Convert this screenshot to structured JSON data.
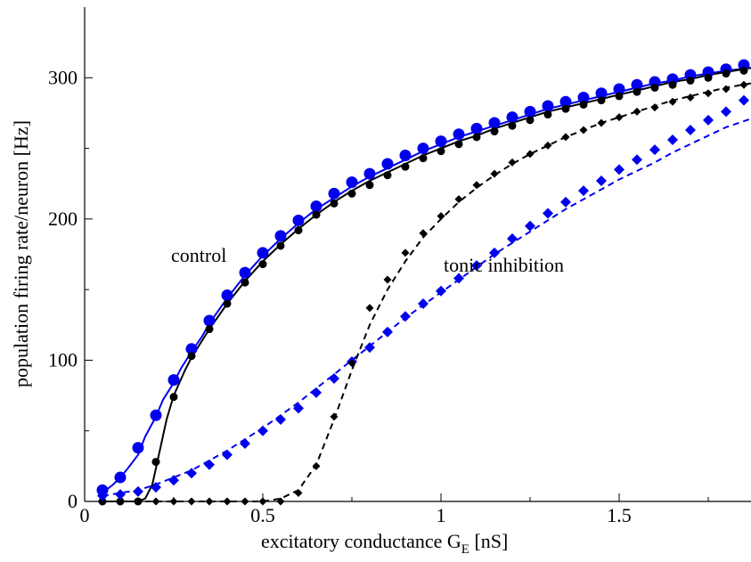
{
  "chart_data": {
    "type": "scatter",
    "xlabel": "excitatory conductance G",
    "xlabel_sub": "E",
    "xlabel_unit": " [nS]",
    "ylabel": "population firing rate/neuron [Hz]",
    "xlim": [
      0,
      1.87
    ],
    "ylim": [
      0,
      350
    ],
    "x_ticks": [
      0,
      0.5,
      1,
      1.5
    ],
    "x_tick_labels": [
      "0",
      "0.5",
      "1",
      "1.5"
    ],
    "y_ticks": [
      0,
      100,
      200,
      300
    ],
    "y_tick_labels": [
      "0",
      "100",
      "200",
      "300"
    ],
    "grid": false,
    "annotations": [
      {
        "text": "control",
        "x": 0.33,
        "y": 172
      },
      {
        "text": "tonic inhibition",
        "x": 1.02,
        "y": 160
      }
    ],
    "colors": {
      "black": "#000000",
      "blue": "#0000ee"
    },
    "series": [
      {
        "marker": "circle",
        "color": "#0000ee",
        "large": true,
        "points": [
          [
            0.05,
            8
          ],
          [
            0.1,
            17
          ],
          [
            0.15,
            38
          ],
          [
            0.2,
            61
          ],
          [
            0.25,
            86
          ],
          [
            0.3,
            108
          ],
          [
            0.35,
            128
          ],
          [
            0.4,
            146
          ],
          [
            0.45,
            162
          ],
          [
            0.5,
            176
          ],
          [
            0.55,
            188
          ],
          [
            0.6,
            199
          ],
          [
            0.65,
            209
          ],
          [
            0.7,
            218
          ],
          [
            0.75,
            226
          ],
          [
            0.8,
            232
          ],
          [
            0.85,
            239
          ],
          [
            0.9,
            245
          ],
          [
            0.95,
            250
          ],
          [
            1.0,
            255
          ],
          [
            1.05,
            260
          ],
          [
            1.1,
            264
          ],
          [
            1.15,
            268
          ],
          [
            1.2,
            272
          ],
          [
            1.25,
            276
          ],
          [
            1.3,
            280
          ],
          [
            1.35,
            283
          ],
          [
            1.4,
            286
          ],
          [
            1.45,
            289
          ],
          [
            1.5,
            292
          ],
          [
            1.55,
            295
          ],
          [
            1.6,
            297
          ],
          [
            1.65,
            299
          ],
          [
            1.7,
            302
          ],
          [
            1.75,
            304
          ],
          [
            1.8,
            306
          ],
          [
            1.85,
            309
          ]
        ]
      },
      {
        "marker": "circle",
        "color": "#000000",
        "large": false,
        "points": [
          [
            0.05,
            0
          ],
          [
            0.1,
            0
          ],
          [
            0.15,
            0
          ],
          [
            0.2,
            28
          ],
          [
            0.25,
            74
          ],
          [
            0.3,
            103
          ],
          [
            0.35,
            122
          ],
          [
            0.4,
            140
          ],
          [
            0.45,
            155
          ],
          [
            0.5,
            168
          ],
          [
            0.55,
            181
          ],
          [
            0.6,
            192
          ],
          [
            0.65,
            203
          ],
          [
            0.7,
            211
          ],
          [
            0.75,
            218
          ],
          [
            0.8,
            224
          ],
          [
            0.85,
            231
          ],
          [
            0.9,
            237
          ],
          [
            0.95,
            243
          ],
          [
            1.0,
            248
          ],
          [
            1.05,
            253
          ],
          [
            1.1,
            258
          ],
          [
            1.15,
            262
          ],
          [
            1.2,
            266
          ],
          [
            1.25,
            270
          ],
          [
            1.3,
            274
          ],
          [
            1.35,
            278
          ],
          [
            1.4,
            281
          ],
          [
            1.45,
            284
          ],
          [
            1.5,
            287
          ],
          [
            1.55,
            290
          ],
          [
            1.6,
            293
          ],
          [
            1.65,
            295
          ],
          [
            1.7,
            298
          ],
          [
            1.75,
            300
          ],
          [
            1.8,
            303
          ],
          [
            1.85,
            305
          ]
        ]
      },
      {
        "marker": "diamond",
        "color": "#0000ee",
        "large": true,
        "points": [
          [
            0.05,
            4
          ],
          [
            0.1,
            5
          ],
          [
            0.15,
            7
          ],
          [
            0.2,
            10
          ],
          [
            0.25,
            15
          ],
          [
            0.3,
            20
          ],
          [
            0.35,
            26
          ],
          [
            0.4,
            33
          ],
          [
            0.45,
            41
          ],
          [
            0.5,
            50
          ],
          [
            0.55,
            58
          ],
          [
            0.6,
            66
          ],
          [
            0.65,
            77
          ],
          [
            0.7,
            87
          ],
          [
            0.75,
            99
          ],
          [
            0.8,
            109
          ],
          [
            0.85,
            120
          ],
          [
            0.9,
            131
          ],
          [
            0.95,
            140
          ],
          [
            1.0,
            149
          ],
          [
            1.05,
            158
          ],
          [
            1.1,
            167
          ],
          [
            1.15,
            176
          ],
          [
            1.2,
            186
          ],
          [
            1.25,
            195
          ],
          [
            1.3,
            204
          ],
          [
            1.35,
            212
          ],
          [
            1.4,
            220
          ],
          [
            1.45,
            227
          ],
          [
            1.5,
            235
          ],
          [
            1.55,
            242
          ],
          [
            1.6,
            249
          ],
          [
            1.65,
            256
          ],
          [
            1.7,
            263
          ],
          [
            1.75,
            270
          ],
          [
            1.8,
            276
          ],
          [
            1.85,
            284
          ]
        ]
      },
      {
        "marker": "diamond",
        "color": "#000000",
        "large": false,
        "points": [
          [
            0.2,
            0
          ],
          [
            0.25,
            0
          ],
          [
            0.3,
            0
          ],
          [
            0.35,
            0
          ],
          [
            0.4,
            0
          ],
          [
            0.45,
            0
          ],
          [
            0.5,
            0
          ],
          [
            0.55,
            0
          ],
          [
            0.6,
            6
          ],
          [
            0.65,
            25
          ],
          [
            0.7,
            60
          ],
          [
            0.75,
            98
          ],
          [
            0.8,
            137
          ],
          [
            0.85,
            157
          ],
          [
            0.9,
            176
          ],
          [
            0.95,
            190
          ],
          [
            1.0,
            202
          ],
          [
            1.05,
            214
          ],
          [
            1.1,
            224
          ],
          [
            1.15,
            232
          ],
          [
            1.2,
            240
          ],
          [
            1.25,
            246
          ],
          [
            1.3,
            252
          ],
          [
            1.35,
            258
          ],
          [
            1.4,
            263
          ],
          [
            1.45,
            268
          ],
          [
            1.5,
            272
          ],
          [
            1.55,
            276
          ],
          [
            1.6,
            279
          ],
          [
            1.65,
            283
          ],
          [
            1.7,
            286
          ],
          [
            1.75,
            289
          ],
          [
            1.8,
            292
          ],
          [
            1.85,
            295
          ]
        ]
      }
    ],
    "curves": [
      {
        "color": "#0000ee",
        "dashed": false,
        "points": [
          [
            0.05,
            6
          ],
          [
            0.08,
            12
          ],
          [
            0.1,
            17
          ],
          [
            0.12,
            23
          ],
          [
            0.15,
            33
          ],
          [
            0.17,
            46
          ],
          [
            0.2,
            60
          ],
          [
            0.22,
            72
          ],
          [
            0.25,
            84
          ],
          [
            0.27,
            94
          ],
          [
            0.3,
            106
          ],
          [
            0.33,
            117
          ],
          [
            0.35,
            126
          ],
          [
            0.4,
            144
          ],
          [
            0.45,
            160
          ],
          [
            0.5,
            174
          ],
          [
            0.55,
            186
          ],
          [
            0.6,
            197
          ],
          [
            0.65,
            207
          ],
          [
            0.7,
            215
          ],
          [
            0.75,
            223
          ],
          [
            0.8,
            230
          ],
          [
            0.85,
            236
          ],
          [
            0.9,
            242
          ],
          [
            0.95,
            248
          ],
          [
            1.0,
            253
          ],
          [
            1.05,
            258
          ],
          [
            1.1,
            262
          ],
          [
            1.15,
            266
          ],
          [
            1.2,
            270
          ],
          [
            1.25,
            274
          ],
          [
            1.3,
            278
          ],
          [
            1.35,
            281
          ],
          [
            1.4,
            284
          ],
          [
            1.45,
            287
          ],
          [
            1.5,
            290
          ],
          [
            1.55,
            293
          ],
          [
            1.6,
            296
          ],
          [
            1.65,
            298
          ],
          [
            1.7,
            301
          ],
          [
            1.75,
            303
          ],
          [
            1.8,
            305
          ],
          [
            1.87,
            307
          ]
        ]
      },
      {
        "color": "#000000",
        "dashed": false,
        "points": [
          [
            0.05,
            0
          ],
          [
            0.15,
            0
          ],
          [
            0.17,
            2
          ],
          [
            0.19,
            12
          ],
          [
            0.21,
            35
          ],
          [
            0.23,
            58
          ],
          [
            0.25,
            75
          ],
          [
            0.28,
            92
          ],
          [
            0.3,
            102
          ],
          [
            0.35,
            122
          ],
          [
            0.4,
            140
          ],
          [
            0.45,
            156
          ],
          [
            0.5,
            170
          ],
          [
            0.55,
            182
          ],
          [
            0.6,
            193
          ],
          [
            0.65,
            203
          ],
          [
            0.7,
            212
          ],
          [
            0.75,
            220
          ],
          [
            0.8,
            227
          ],
          [
            0.85,
            233
          ],
          [
            0.9,
            239
          ],
          [
            0.95,
            245
          ],
          [
            1.0,
            250
          ],
          [
            1.05,
            255
          ],
          [
            1.1,
            259
          ],
          [
            1.15,
            264
          ],
          [
            1.2,
            268
          ],
          [
            1.25,
            272
          ],
          [
            1.3,
            276
          ],
          [
            1.35,
            279
          ],
          [
            1.4,
            282
          ],
          [
            1.45,
            285
          ],
          [
            1.5,
            288
          ],
          [
            1.55,
            291
          ],
          [
            1.6,
            294
          ],
          [
            1.65,
            297
          ],
          [
            1.7,
            299
          ],
          [
            1.75,
            302
          ],
          [
            1.8,
            304
          ],
          [
            1.87,
            307
          ]
        ]
      },
      {
        "color": "#0000ee",
        "dashed": true,
        "points": [
          [
            0.05,
            4
          ],
          [
            0.1,
            6
          ],
          [
            0.15,
            8
          ],
          [
            0.2,
            12
          ],
          [
            0.25,
            17
          ],
          [
            0.3,
            22
          ],
          [
            0.35,
            29
          ],
          [
            0.4,
            36
          ],
          [
            0.45,
            44
          ],
          [
            0.5,
            52
          ],
          [
            0.55,
            61
          ],
          [
            0.6,
            70
          ],
          [
            0.65,
            80
          ],
          [
            0.7,
            90
          ],
          [
            0.75,
            100
          ],
          [
            0.8,
            110
          ],
          [
            0.85,
            120
          ],
          [
            0.9,
            130
          ],
          [
            0.95,
            139
          ],
          [
            1.0,
            148
          ],
          [
            1.05,
            157
          ],
          [
            1.1,
            166
          ],
          [
            1.15,
            175
          ],
          [
            1.2,
            183
          ],
          [
            1.25,
            191
          ],
          [
            1.3,
            199
          ],
          [
            1.35,
            207
          ],
          [
            1.4,
            214
          ],
          [
            1.45,
            221
          ],
          [
            1.5,
            228
          ],
          [
            1.55,
            234
          ],
          [
            1.6,
            240
          ],
          [
            1.65,
            247
          ],
          [
            1.7,
            253
          ],
          [
            1.75,
            259
          ],
          [
            1.8,
            265
          ],
          [
            1.87,
            271
          ]
        ]
      },
      {
        "color": "#000000",
        "dashed": true,
        "points": [
          [
            0.05,
            0
          ],
          [
            0.5,
            0
          ],
          [
            0.55,
            2
          ],
          [
            0.6,
            8
          ],
          [
            0.65,
            26
          ],
          [
            0.7,
            58
          ],
          [
            0.75,
            93
          ],
          [
            0.8,
            125
          ],
          [
            0.85,
            150
          ],
          [
            0.9,
            170
          ],
          [
            0.95,
            187
          ],
          [
            1.0,
            200
          ],
          [
            1.05,
            212
          ],
          [
            1.1,
            222
          ],
          [
            1.15,
            231
          ],
          [
            1.2,
            239
          ],
          [
            1.25,
            246
          ],
          [
            1.3,
            252
          ],
          [
            1.35,
            258
          ],
          [
            1.4,
            263
          ],
          [
            1.45,
            268
          ],
          [
            1.5,
            272
          ],
          [
            1.55,
            276
          ],
          [
            1.6,
            280
          ],
          [
            1.65,
            284
          ],
          [
            1.7,
            287
          ],
          [
            1.75,
            290
          ],
          [
            1.8,
            293
          ],
          [
            1.87,
            296
          ]
        ]
      }
    ]
  }
}
